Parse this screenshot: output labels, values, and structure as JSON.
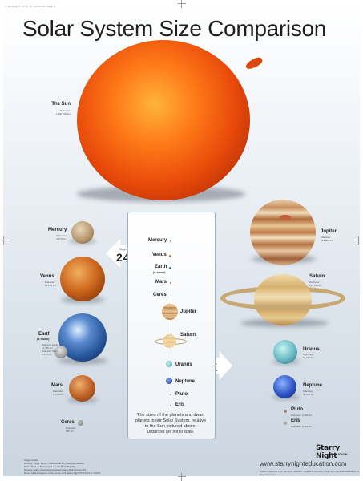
{
  "printer_line": "1_Solarpdf1  4:59 PM  12/01/09  Page 1",
  "title": "Solar System Size Comparison",
  "sun": {
    "name": "The Sun",
    "sub1": "Diameter:",
    "sub2": "1,392,530 km"
  },
  "left_planets": [
    {
      "key": "mercury",
      "name": "Mercury",
      "sub1": "Diameter:",
      "sub2": "4,879 km"
    },
    {
      "key": "venus",
      "name": "Venus",
      "sub1": "Diameter:",
      "sub2": "12,104 km"
    },
    {
      "key": "earth",
      "name": "Earth",
      "name2": "(& moon)",
      "sub1": "Diameter Earth:",
      "sub2": "12,756 km",
      "sub3": "Diameter Moon:",
      "sub4": "3,475 km"
    },
    {
      "key": "mars",
      "name": "Mars",
      "sub1": "Diameter:",
      "sub2": "6,792 km"
    },
    {
      "key": "ceres",
      "name": "Ceres",
      "sub1": "Diameter:",
      "sub2": "950 km"
    }
  ],
  "right_planets": [
    {
      "key": "jupiter",
      "name": "Jupiter",
      "sub1": "Diameter:",
      "sub2": "142,984 km"
    },
    {
      "key": "saturn",
      "name": "Saturn",
      "sub1": "Diameter:",
      "sub2": "120,536 km"
    },
    {
      "key": "uranus",
      "name": "Uranus",
      "sub1": "Diameter:",
      "sub2": "51,118 km"
    },
    {
      "key": "neptune",
      "name": "Neptune",
      "sub1": "Diameter:",
      "sub2": "49,528 km"
    },
    {
      "key": "pluto",
      "name": "Pluto",
      "sub1": "Diameter: 2,300 km"
    },
    {
      "key": "eris",
      "name": "Eris",
      "sub1": "Diameter: 2,400 km"
    }
  ],
  "magnify_left": {
    "small": "Magnified",
    "big": "24X"
  },
  "magnify_right": {
    "small": "Magnified",
    "big": "4X"
  },
  "center_list": {
    "mercury": "Mercury",
    "venus": "Venus",
    "earth": "Earth",
    "earth_moon": "(& moon)",
    "mars": "Mars",
    "ceres": "Ceres",
    "jupiter": "Jupiter",
    "saturn": "Saturn",
    "uranus": "Uranus",
    "neptune": "Neptune",
    "pluto": "Pluto",
    "eris": "Eris"
  },
  "caption": {
    "line1": "The sizes of the planets and dwarf",
    "line2": "planets in our Solar System, relative",
    "line3": "to the Sun pictured above.",
    "line4": "Distances are not to scale."
  },
  "logo": {
    "main": "Starry Night",
    "sub": "EDUCATION"
  },
  "url": "www.starrynighteducation.com",
  "legal": "©2009 Imaginova Corp. All rights reserved. Imaginova and Starry Night are registered trademarks of Imaginova Corp.",
  "credits": {
    "line1": "Image Credits:",
    "line2": "Mercury, Venus, Saturn: NASA/Lunar and Planetary Institute",
    "line3": "Mars: NASA, J. Bell (Cornell U.) and M. Wolff (SSI)",
    "line4": "Neptune: Earth Observatory/Goddard Space Flight Center/JPL",
    "line5": "Moon, Jupiter, Neptune, Pluto, Ceres, Eris: Starry Night Pro Plus 6.3 / SOHO"
  },
  "colors": {
    "sun": "#e84a0a",
    "background_top": "#ffffff",
    "background_bottom": "#cbd5df"
  }
}
